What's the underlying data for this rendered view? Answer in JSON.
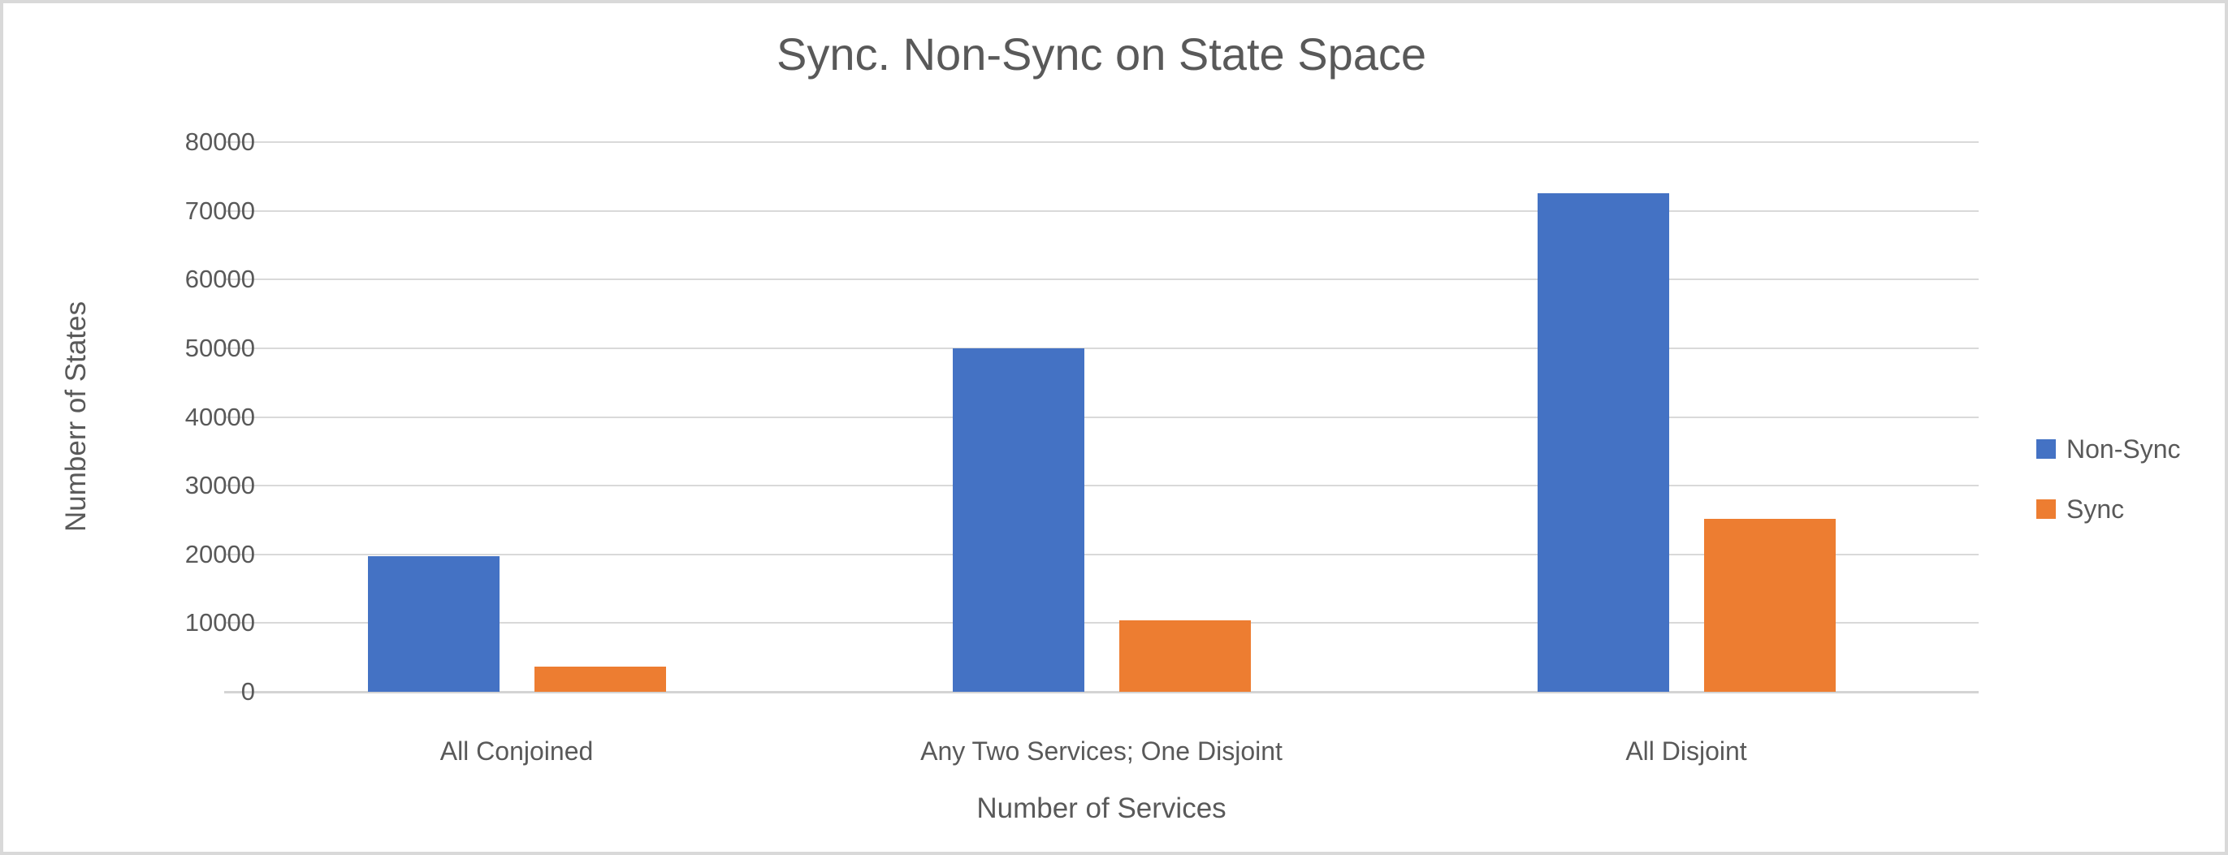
{
  "frame": {
    "background": "#ffffff",
    "border_color": "#d9d9d9"
  },
  "chart_data": {
    "type": "bar",
    "title": "Sync. Non-Sync on State Space",
    "xlabel": "Number of Services",
    "ylabel": "Numberr of States",
    "categories": [
      "All Conjoined",
      "Any Two Services; One Disjoint",
      "All Disjoint"
    ],
    "series": [
      {
        "name": "Non-Sync",
        "color": "#4472c4",
        "values": [
          19700,
          50000,
          72500
        ]
      },
      {
        "name": "Sync",
        "color": "#ed7d31",
        "values": [
          3700,
          10400,
          25200
        ]
      }
    ],
    "ylim": [
      0,
      80000
    ],
    "yticks": [
      0,
      10000,
      20000,
      30000,
      40000,
      50000,
      60000,
      70000,
      80000
    ],
    "grid": true,
    "legend_position": "right",
    "text_color": "#595959",
    "gridline_color": "#d9d9d9"
  }
}
